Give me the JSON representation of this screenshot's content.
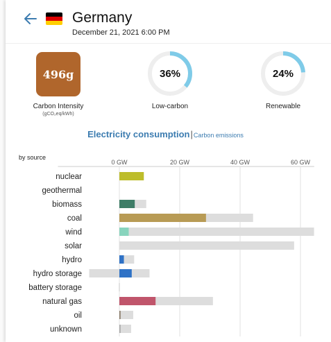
{
  "header": {
    "country": "Germany",
    "datetime": "December 21, 2021 6:00 PM",
    "flag_colors": [
      "#000000",
      "#dd0000",
      "#ffce00"
    ],
    "back_icon": "arrow-left-icon"
  },
  "carbon_intensity": {
    "value": "496g",
    "label": "Carbon Intensity",
    "unit": "(gCO₂eq/kWh)",
    "color": "#b0662c"
  },
  "low_carbon": {
    "value": "36%",
    "fraction": 0.36,
    "label": "Low-carbon",
    "color": "#7fcbe8"
  },
  "renewable": {
    "value": "24%",
    "fraction": 0.24,
    "label": "Renewable",
    "color": "#7fcbe8"
  },
  "chart_title": {
    "main": "Electricity consumption",
    "separator": "|",
    "alt": "Carbon emissions"
  },
  "chart_data": {
    "type": "bar",
    "subtitle": "by source",
    "axis_ticks": [
      "0 GW",
      "20 GW",
      "40 GW",
      "60 GW"
    ],
    "xlim": [
      -10,
      65
    ],
    "categories": [
      "nuclear",
      "geothermal",
      "biomass",
      "coal",
      "wind",
      "solar",
      "hydro",
      "hydro storage",
      "battery storage",
      "natural gas",
      "oil",
      "unknown"
    ],
    "series": [
      {
        "values": [
          8.1,
          0,
          5.1,
          28.7,
          3.1,
          0,
          1.5,
          4.1,
          0,
          12.0,
          0.4,
          0.4
        ],
        "colors": [
          "#bdbd2b",
          "#bdbd2b",
          "#3e7d67",
          "#b89b55",
          "#88d4bd",
          "#f4d166",
          "#2f72c6",
          "#2f72c6",
          "#aaaaaa",
          "#c0556b",
          "#8d7f6e",
          "#aaaaaa"
        ]
      }
    ],
    "capacity": [
      [
        0,
        8.1
      ],
      [
        0,
        0
      ],
      [
        0,
        8.9
      ],
      [
        0,
        44.3
      ],
      [
        0,
        64.5
      ],
      [
        0,
        57.9
      ],
      [
        0,
        4.9
      ],
      [
        -10,
        10.0
      ],
      [
        -0.2,
        0.2
      ],
      [
        0,
        31.0
      ],
      [
        0,
        4.6
      ],
      [
        0,
        3.9
      ]
    ]
  }
}
